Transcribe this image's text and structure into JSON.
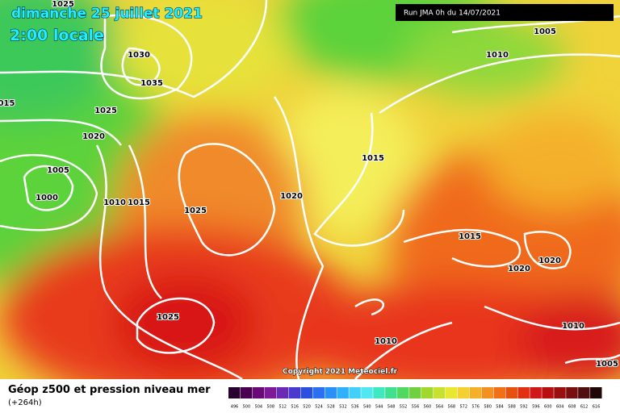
{
  "header": {
    "title": "dimanche 25 juillet 2021",
    "subtitle": "2:00 locale",
    "run": "Run JMA 0h du 14/07/2021"
  },
  "isobar_labels": [
    "1025",
    "1030",
    "1035",
    "1025",
    "1020",
    "1005",
    "1000",
    "1010",
    "1015",
    "1025",
    "1020",
    "1015",
    "1010",
    "1005",
    "1015",
    "1020",
    "1020",
    "1025",
    "1010",
    "1010",
    "1005",
    "015"
  ],
  "copyright": "Copyright 2021 Meteociel.fr",
  "footer": {
    "title": "Géop z500 et pression niveau mer",
    "lead": "(+264h)"
  },
  "legend": {
    "labels": [
      496,
      500,
      504,
      508,
      512,
      516,
      520,
      524,
      528,
      532,
      536,
      540,
      544,
      548,
      552,
      556,
      560,
      564,
      568,
      572,
      576,
      580,
      584,
      588,
      592,
      596,
      600,
      604,
      608,
      612,
      616
    ]
  }
}
